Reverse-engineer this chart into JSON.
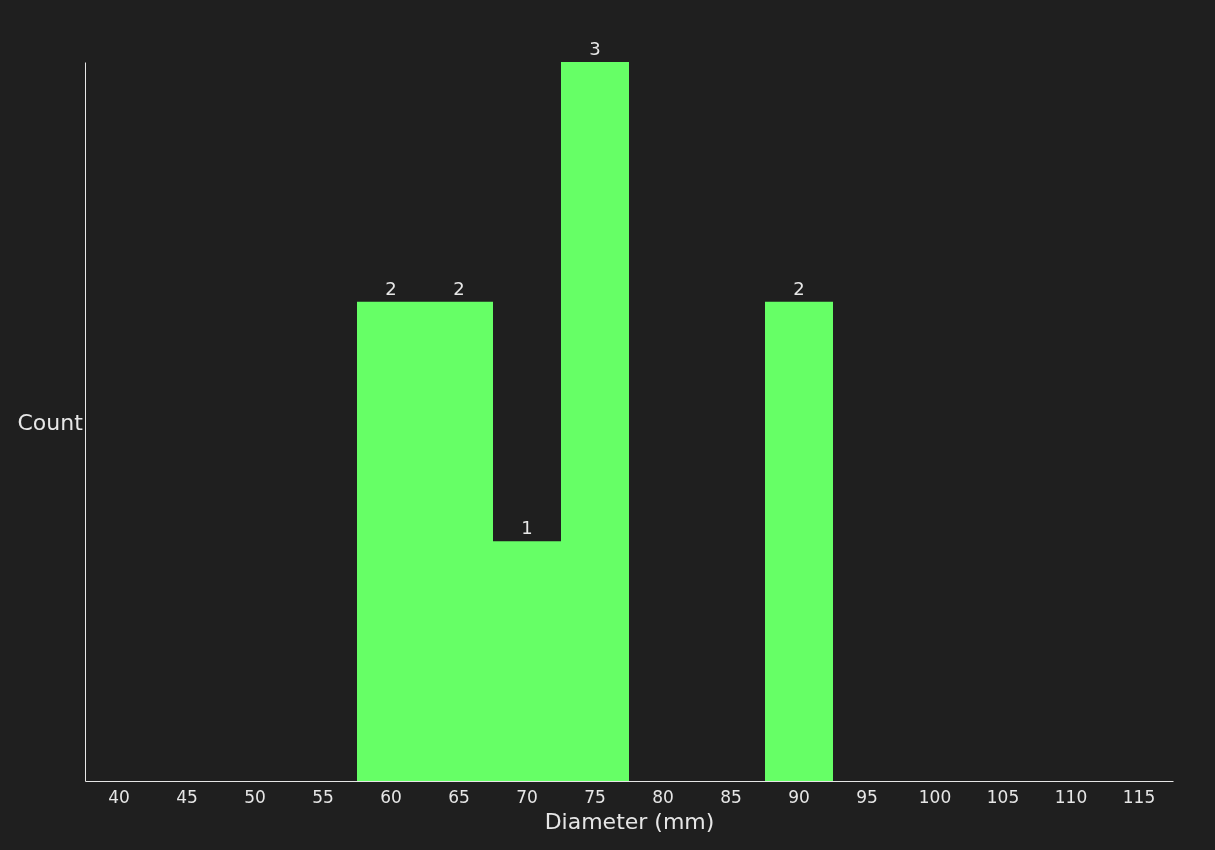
{
  "chart_data": {
    "type": "bar",
    "xlabel": "Diameter (mm)",
    "ylabel": "Count",
    "categories": [
      "40",
      "45",
      "50",
      "55",
      "60",
      "65",
      "70",
      "75",
      "80",
      "85",
      "90",
      "95",
      "100",
      "105",
      "110",
      "115"
    ],
    "values": [
      0,
      0,
      0,
      0,
      2,
      2,
      1,
      3,
      0,
      0,
      2,
      0,
      0,
      0,
      0,
      0
    ],
    "value_labels": [
      null,
      null,
      null,
      null,
      "2",
      "2",
      "1",
      "3",
      null,
      null,
      "2",
      null,
      null,
      null,
      null,
      null
    ],
    "color": "#66ff66",
    "ylim": [
      0,
      3
    ],
    "grid": false
  }
}
